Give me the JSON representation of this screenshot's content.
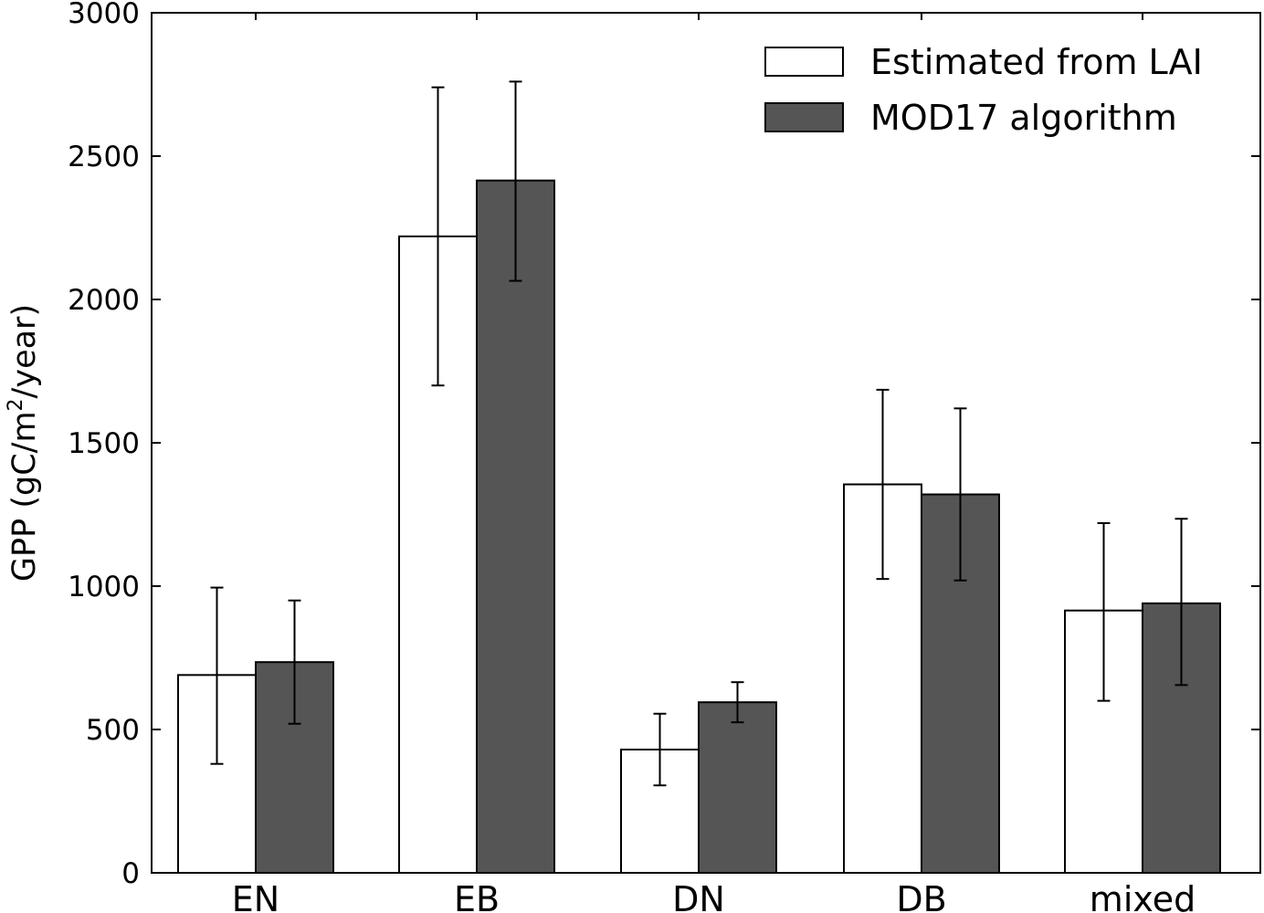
{
  "chart_data": {
    "type": "bar",
    "title": "",
    "xlabel": "",
    "ylabel_prefix": "GPP (gC/m",
    "ylabel_superscript": "2",
    "ylabel_suffix": "/year)",
    "ylim": [
      0,
      3000
    ],
    "yticks": [
      0,
      500,
      1000,
      1500,
      2000,
      2500,
      3000
    ],
    "ytick_labels": [
      "0",
      "500",
      "1000",
      "1500",
      "2000",
      "2500",
      "3000"
    ],
    "categories": [
      "EN",
      "EB",
      "DN",
      "DB",
      "mixed"
    ],
    "series": [
      {
        "name": "Estimated from LAI",
        "fill": "#ffffff",
        "values": [
          690,
          2220,
          430,
          1355,
          915
        ],
        "err_low": [
          380,
          1700,
          305,
          1025,
          600
        ],
        "err_high": [
          995,
          2740,
          555,
          1685,
          1220
        ]
      },
      {
        "name": "MOD17 algorithm",
        "fill": "#555555",
        "values": [
          735,
          2415,
          595,
          1320,
          940
        ],
        "err_low": [
          520,
          2065,
          525,
          1020,
          655
        ],
        "err_high": [
          950,
          2760,
          665,
          1620,
          1235
        ]
      }
    ],
    "legend_position": "top-right",
    "grid": false
  }
}
